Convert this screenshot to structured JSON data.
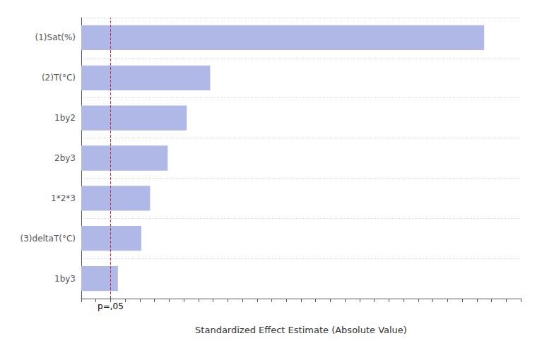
{
  "chart_data": {
    "type": "bar",
    "orientation": "horizontal",
    "categories": [
      "1by3",
      "(3)deltaT(°C)",
      "1*2*3",
      "2by3",
      "1by2",
      "(2)T(°C)",
      "(1)Sat(%)"
    ],
    "values": [
      2.5,
      4.1,
      4.7,
      5.9,
      7.2,
      8.8,
      27.5
    ],
    "color": "#b0b8e8",
    "xlabel": "Standardized Effect Estimate (Absolute Value)",
    "xlim": [
      0,
      30
    ],
    "xticks": [
      0,
      1,
      2,
      3,
      4,
      5,
      6,
      7,
      8,
      9,
      10,
      11,
      12,
      13,
      14,
      15,
      16,
      17,
      18,
      19,
      20,
      21,
      22,
      23,
      24,
      25,
      26,
      27,
      28,
      29,
      30
    ],
    "grid": true,
    "tick_labels": "y",
    "annotations": [
      {
        "text": "p=,05",
        "x": 2.0,
        "color": "#bb3333"
      }
    ]
  }
}
